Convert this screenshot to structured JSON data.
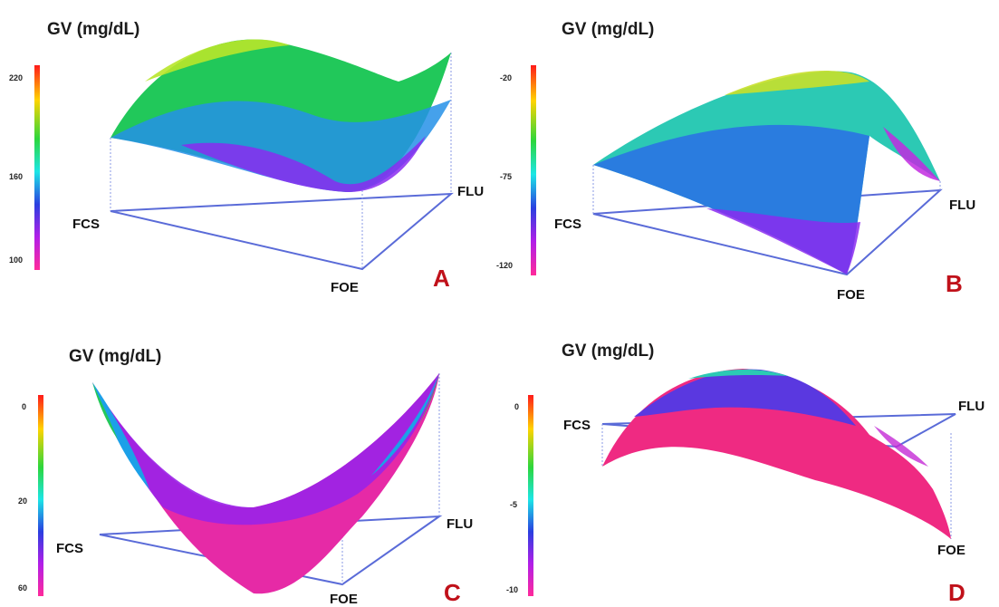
{
  "chart_data": [
    {
      "type": "surface",
      "panel": "A",
      "title": "GV (mg/dL)",
      "axes": [
        "FCS",
        "FOE",
        "FLU"
      ],
      "colorbar_ticks": [
        "220",
        "160",
        "100"
      ],
      "colorbar_range": [
        100,
        220
      ]
    },
    {
      "type": "surface",
      "panel": "B",
      "title": "GV (mg/dL)",
      "axes": [
        "FCS",
        "FOE",
        "FLU"
      ],
      "colorbar_ticks": [
        "-20",
        "-75",
        "-120"
      ],
      "colorbar_range": [
        -120,
        -20
      ]
    },
    {
      "type": "surface",
      "panel": "C",
      "title": "GV (mg/dL)",
      "axes": [
        "FCS",
        "FOE",
        "FLU"
      ],
      "colorbar_ticks": [
        "0",
        "20",
        "60"
      ],
      "colorbar_range": [
        0,
        60
      ]
    },
    {
      "type": "surface",
      "panel": "D",
      "title": "GV (mg/dL)",
      "axes": [
        "FCS",
        "FOE",
        "FLU"
      ],
      "colorbar_ticks": [
        "0",
        "-5",
        "-10"
      ],
      "colorbar_range": [
        -10,
        0
      ]
    }
  ],
  "colors": {
    "colormap": [
      "#ff1a1a",
      "#ffd400",
      "#2cd63c",
      "#1ce6e6",
      "#2a3fe0",
      "#b21ee8",
      "#ff2a9a"
    ],
    "frame": "#5a6bd8",
    "panel_letter": "#c0111a"
  }
}
